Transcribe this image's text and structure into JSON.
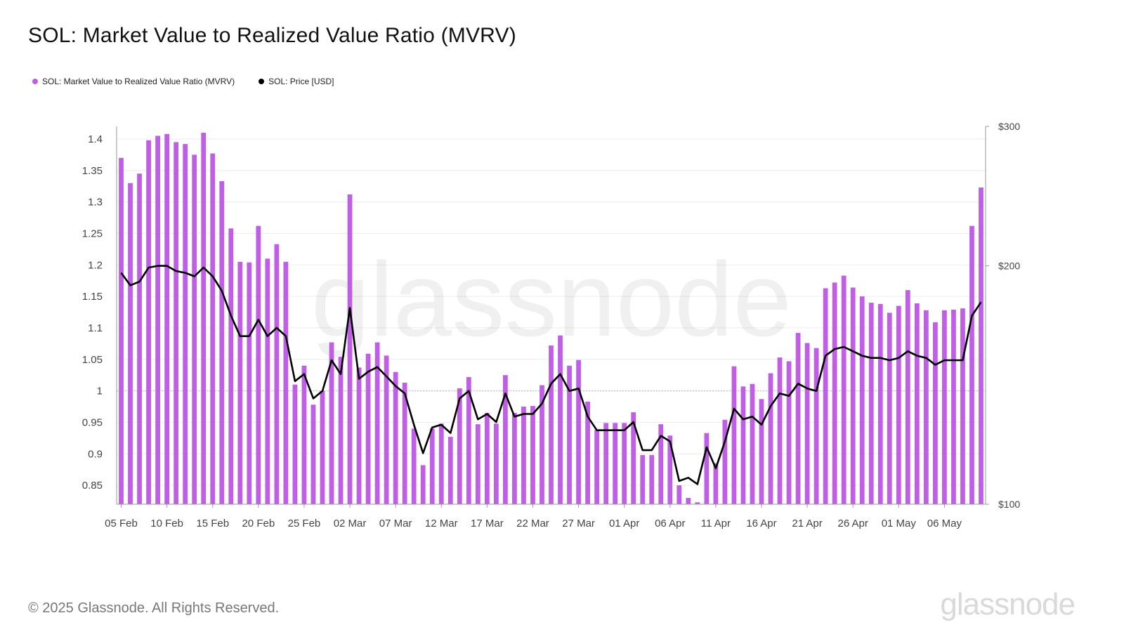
{
  "title": "SOL: Market Value to Realized Value Ratio (MVRV)",
  "legend": [
    {
      "label": "SOL: Market Value to Realized Value Ratio (MVRV)",
      "color": "#c05ee6"
    },
    {
      "label": "SOL: Price [USD]",
      "color": "#000000"
    }
  ],
  "watermark": "glassnode",
  "footer": {
    "copyright": "© 2025 Glassnode. All Rights Reserved.",
    "logo": "glassnode"
  },
  "chart_data": {
    "type": "bar",
    "title": "SOL: Market Value to Realized Value Ratio (MVRV)",
    "x_start": "05 Feb",
    "x_tick_labels": [
      "05 Feb",
      "10 Feb",
      "15 Feb",
      "20 Feb",
      "25 Feb",
      "02 Mar",
      "07 Mar",
      "12 Mar",
      "17 Mar",
      "22 Mar",
      "27 Mar",
      "01 Apr",
      "06 Apr",
      "11 Apr",
      "16 Apr",
      "21 Apr",
      "26 Apr",
      "01 May",
      "06 May"
    ],
    "y_left": {
      "ticks": [
        "0.85",
        "0.9",
        "0.95",
        "1",
        "1.05",
        "1.1",
        "1.15",
        "1.2",
        "1.25",
        "1.3",
        "1.35",
        "1.4"
      ],
      "range": [
        0.82,
        1.42
      ],
      "reference_line": 1
    },
    "y_right": {
      "ticks": [
        "$100",
        "$200",
        "$300"
      ],
      "scale": "log",
      "range": [
        100,
        300
      ]
    },
    "grid": "horizontal",
    "legend_position": "top-left",
    "series": [
      {
        "name": "SOL: Market Value to Realized Value Ratio (MVRV)",
        "type": "bar",
        "axis": "left",
        "color": "#c05ee6",
        "values": [
          1.37,
          1.33,
          1.345,
          1.398,
          1.405,
          1.408,
          1.395,
          1.392,
          1.375,
          1.41,
          1.377,
          1.333,
          1.258,
          1.205,
          1.204,
          1.262,
          1.21,
          1.233,
          1.205,
          1.01,
          1.04,
          0.978,
          1.0,
          1.077,
          1.054,
          1.312,
          1.037,
          1.059,
          1.077,
          1.056,
          1.03,
          1.013,
          0.94,
          0.882,
          0.94,
          0.948,
          0.927,
          1.004,
          1.022,
          0.947,
          0.965,
          0.948,
          1.025,
          0.965,
          0.975,
          0.976,
          1.009,
          1.072,
          1.088,
          1.04,
          1.049,
          0.983,
          0.938,
          0.949,
          0.949,
          0.949,
          0.966,
          0.898,
          0.898,
          0.947,
          0.929,
          0.85,
          0.83,
          0.823,
          0.933,
          0.885,
          0.954,
          1.039,
          1.007,
          1.011,
          0.987,
          1.028,
          1.053,
          1.047,
          1.092,
          1.076,
          1.068,
          1.163,
          1.172,
          1.183,
          1.164,
          1.15,
          1.14,
          1.138,
          1.124,
          1.135,
          1.16,
          1.139,
          1.128,
          1.109,
          1.128,
          1.129,
          1.131,
          1.262,
          1.323
        ]
      },
      {
        "name": "SOL: Price [USD]",
        "type": "line",
        "axis": "right",
        "color": "#000000",
        "values": [
          196,
          189,
          191,
          199,
          200,
          200,
          197,
          196,
          194,
          199,
          194,
          186,
          173,
          163,
          163,
          171,
          163,
          167,
          163,
          143,
          146,
          136,
          139,
          152,
          146,
          177,
          144,
          147,
          149,
          145,
          141,
          138,
          126,
          116,
          125,
          126,
          123,
          136,
          139,
          128,
          130,
          127,
          138,
          129,
          130,
          130,
          134,
          142,
          146,
          139,
          140,
          129,
          124,
          124,
          124,
          124,
          127,
          117,
          117,
          122,
          120,
          107,
          108,
          106,
          118,
          111,
          120,
          132,
          128,
          129,
          126,
          133,
          138,
          137,
          142,
          140,
          139,
          154,
          157,
          158,
          156,
          154,
          153,
          153,
          152,
          153,
          156,
          154,
          153,
          150,
          152,
          152,
          152,
          173,
          180
        ]
      }
    ]
  }
}
